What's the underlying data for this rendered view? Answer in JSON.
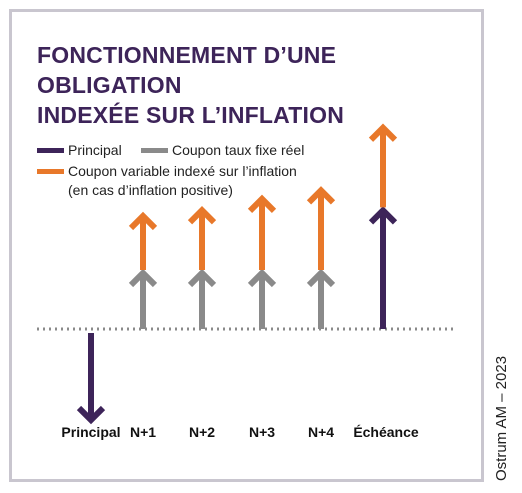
{
  "title_lines": [
    "FONCTIONNEMENT D’UNE OBLIGATION",
    "INDEXÉE SUR L’INFLATION"
  ],
  "legend": [
    {
      "label": "Principal",
      "color": "#3d2459"
    },
    {
      "label": "Coupon taux fixe réel",
      "color": "#8a8a8a"
    },
    {
      "label": "Coupon variable indexé sur l’inflation",
      "color": "#e8782a"
    },
    {
      "label": "(en cas d’inflation positive)"
    }
  ],
  "columns": [
    {
      "label": "Principal",
      "principal": -1,
      "fixed": 0,
      "variable": 0
    },
    {
      "label": "N+1",
      "principal": 0,
      "fixed": 1,
      "variable": 1
    },
    {
      "label": "N+2",
      "principal": 0,
      "fixed": 1,
      "variable": 1.1
    },
    {
      "label": "N+3",
      "principal": 0,
      "fixed": 1,
      "variable": 1.3
    },
    {
      "label": "N+4",
      "principal": 0,
      "fixed": 1,
      "variable": 1.45
    }
  ],
  "maturity": {
    "label": "Échéance",
    "principal": 2.6,
    "variable": 1.45
  },
  "credit": "Ostrum AM – 2023",
  "colors": {
    "principal": "#3d2459",
    "fixed": "#8a8a8a",
    "variable": "#e8782a",
    "baseline": "#8a8a8a"
  }
}
